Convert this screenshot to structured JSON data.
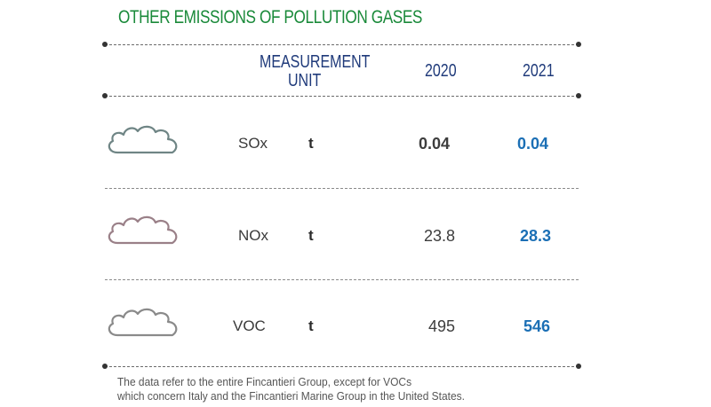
{
  "title": "OTHER EMISSIONS OF POLLUTION GASES",
  "header": {
    "measurement_line1": "MEASUREMENT",
    "measurement_line2": "UNIT",
    "year1": "2020",
    "year2": "2021"
  },
  "rows": [
    {
      "gas": "SOx",
      "unit": "t",
      "v2020": "0.04",
      "v2021": "0.04",
      "icon": "cloud-icon",
      "icon_color": "#6f8585"
    },
    {
      "gas": "NOx",
      "unit": "t",
      "v2020": "23.8",
      "v2021": "28.3",
      "icon": "cloud-icon",
      "icon_color": "#9a8088"
    },
    {
      "gas": "VOC",
      "unit": "t",
      "v2020": "495",
      "v2021": "546",
      "icon": "cloud-icon",
      "icon_color": "#8a8a8a"
    }
  ],
  "footnote": {
    "line1": "The data refer to the entire Fincantieri Group, except for VOCs",
    "line2": "which concern Italy and the Fincantieri Marine Group in the United States."
  },
  "colors": {
    "title": "#1a8a3a",
    "header": "#1f3a7a",
    "year2021_values": "#1b6fb5"
  }
}
